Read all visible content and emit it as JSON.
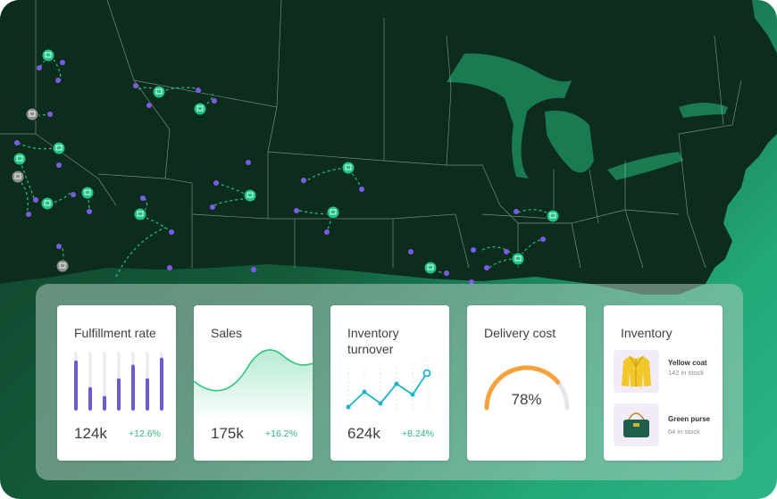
{
  "cards": {
    "fulfillment": {
      "title": "Fulfillment rate",
      "value": "124k",
      "delta": "+12.6%",
      "bars": [
        0.85,
        0.4,
        0.25,
        0.55,
        0.78,
        0.55,
        0.9
      ]
    },
    "sales": {
      "title": "Sales",
      "value": "175k",
      "delta": "+16.2%"
    },
    "turnover": {
      "title": "Inventory turnover",
      "value": "624k",
      "delta": "+8.24%"
    },
    "delivery": {
      "title": "Delivery cost",
      "percent_label": "78%",
      "percent": 0.78
    },
    "inventory": {
      "title": "Inventory",
      "items": [
        {
          "name": "Yellow coat",
          "stock": "142 in stock"
        },
        {
          "name": "Green purse",
          "stock": "64 in stock"
        }
      ]
    }
  },
  "colors": {
    "accent_purple": "#6d5bd6",
    "accent_green": "#2fc47e",
    "accent_teal": "#1cb5c9",
    "gauge_orange": "#f5a23c",
    "map_land": "#0c2d1d",
    "marker_green": "#1fc486",
    "marker_gray": "#8a8f8c"
  },
  "icons": {
    "map_marker": "shop-pin-icon",
    "product_1": "yellow-coat-icon",
    "product_2": "green-purse-icon"
  }
}
